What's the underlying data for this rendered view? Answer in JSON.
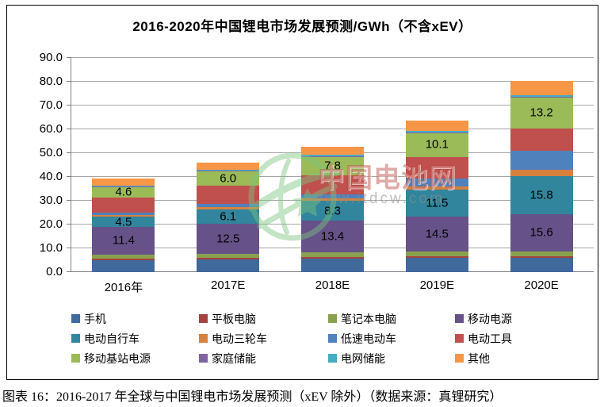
{
  "figure": {
    "title": "2016-2020年中国锂电市场发展预测/GWh（不含xEV）",
    "caption": "图表 16：2016-2017 年全球与中国锂电市场发展预测（xEV 除外）（数据来源：真锂研究）",
    "watermark": {
      "brand": "中国电池网",
      "url": "www.itdcw.com",
      "logo_color": "#7cc47f"
    }
  },
  "chart_data": {
    "type": "bar",
    "stacked": true,
    "title": "2016-2020年中国锂电市场发展预测/GWh（不含xEV）",
    "xlabel": "",
    "ylabel": "",
    "ylim": [
      0,
      90
    ],
    "ytick_step": 10,
    "ytick_labels": [
      "0.0",
      "10.0",
      "20.0",
      "30.0",
      "40.0",
      "50.0",
      "60.0",
      "70.0",
      "80.0",
      "90.0"
    ],
    "grid": true,
    "gridline_color": "#a6a6a6",
    "legend_position": "bottom",
    "categories": [
      "2016年",
      "2017E",
      "2018E",
      "2019E",
      "2020E"
    ],
    "series": [
      {
        "name": "手机",
        "color": "#40699c",
        "show_labels": false,
        "values": [
          5.0,
          5.2,
          5.6,
          6.0,
          6.1
        ]
      },
      {
        "name": "平板电脑",
        "color": "#a4433f",
        "show_labels": false,
        "values": [
          0.7,
          0.7,
          0.6,
          0.6,
          0.5
        ]
      },
      {
        "name": "笔记本电脑",
        "color": "#89a14e",
        "show_labels": false,
        "values": [
          1.8,
          1.9,
          2.0,
          2.1,
          2.2
        ]
      },
      {
        "name": "移动电源",
        "color": "#665189",
        "show_labels": true,
        "values": [
          11.4,
          12.5,
          13.4,
          14.5,
          15.6
        ]
      },
      {
        "name": "电动自行车",
        "color": "#31859c",
        "show_labels": true,
        "values": [
          4.5,
          6.1,
          8.3,
          11.5,
          15.8
        ]
      },
      {
        "name": "电动三轮车",
        "color": "#d6813e",
        "show_labels": false,
        "values": [
          0.7,
          0.9,
          1.1,
          1.4,
          2.8
        ]
      },
      {
        "name": "低速电动车",
        "color": "#4f81bd",
        "show_labels": false,
        "values": [
          1.0,
          1.3,
          1.7,
          3.2,
          8.0
        ]
      },
      {
        "name": "电动工具",
        "color": "#c0504d",
        "show_labels": false,
        "values": [
          6.3,
          7.8,
          8.1,
          9.2,
          9.4
        ]
      },
      {
        "name": "移动基站电源",
        "color": "#9bbb59",
        "show_labels": true,
        "values": [
          4.6,
          6.0,
          7.8,
          10.1,
          13.2
        ]
      },
      {
        "name": "家庭储能",
        "color": "#8064a2",
        "show_labels": false,
        "values": [
          0.1,
          0.2,
          0.2,
          0.2,
          0.2
        ]
      },
      {
        "name": "电网储能",
        "color": "#45acc5",
        "show_labels": false,
        "values": [
          0.3,
          0.4,
          0.5,
          0.5,
          0.6
        ]
      },
      {
        "name": "其他",
        "color": "#f79646",
        "show_labels": false,
        "values": [
          2.8,
          3.0,
          3.3,
          4.5,
          5.9
        ]
      }
    ],
    "data_labels_note": "labels shown only on 移动电源 / 电动自行车 / 移动基站电源 segments"
  }
}
